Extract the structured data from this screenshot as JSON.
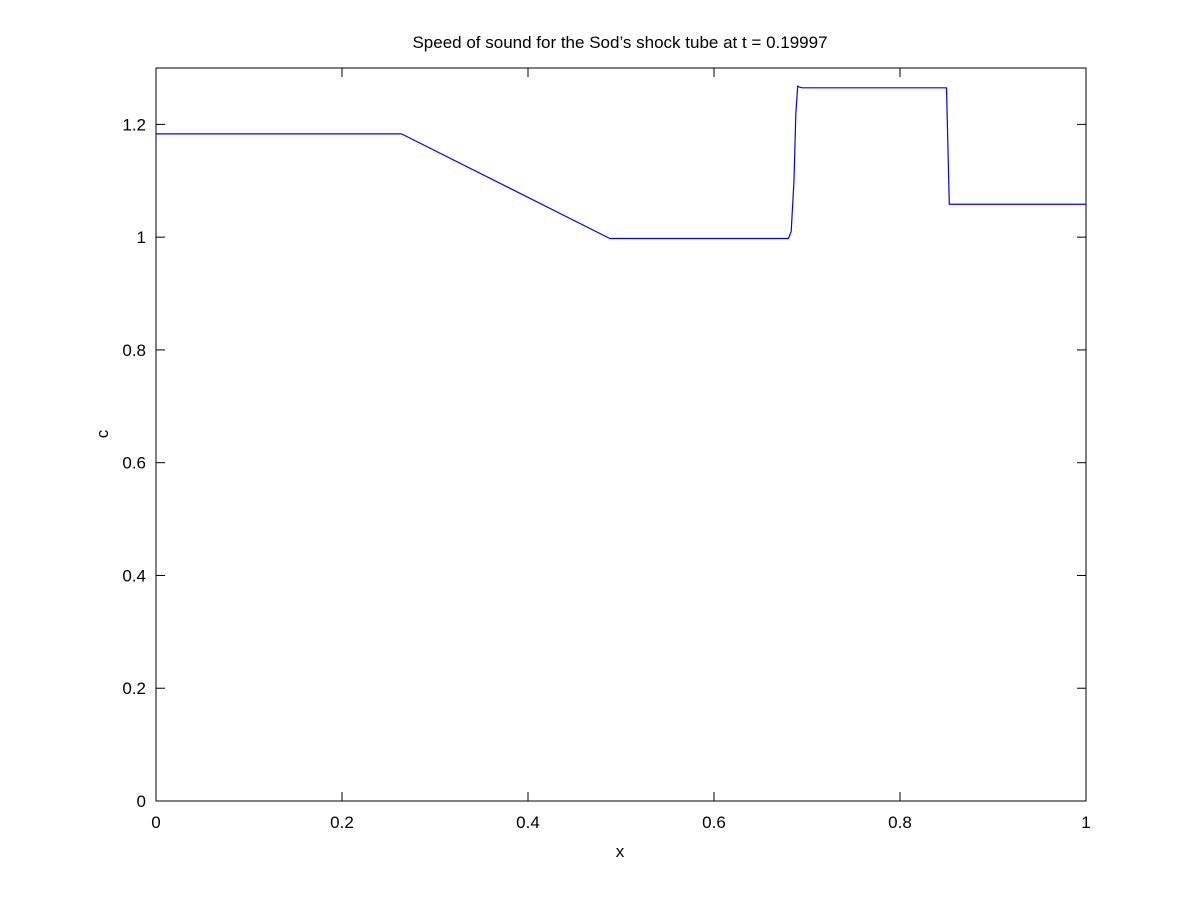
{
  "chart_data": {
    "type": "line",
    "title": "Speed of sound for the Sod’s shock tube at t = 0.19997",
    "xlabel": "x",
    "ylabel": "c",
    "xlim": [
      0,
      1
    ],
    "ylim": [
      0,
      1.3
    ],
    "x_ticks": [
      0,
      0.2,
      0.4,
      0.6,
      0.8,
      1
    ],
    "x_tick_labels": [
      "0",
      "0.2",
      "0.4",
      "0.6",
      "0.8",
      "1"
    ],
    "y_ticks": [
      0,
      0.2,
      0.4,
      0.6,
      0.8,
      1,
      1.2
    ],
    "y_tick_labels": [
      "0",
      "0.2",
      "0.4",
      "0.6",
      "0.8",
      "1",
      "1.2"
    ],
    "grid": false,
    "series": [
      {
        "color": "#0000ff",
        "x": [
          0,
          0.264,
          0.488,
          0.68,
          0.683,
          0.686,
          0.688,
          0.69,
          0.692,
          0.695,
          0.85,
          0.853,
          1
        ],
        "y": [
          1.1832,
          1.1832,
          0.9976,
          0.9976,
          1.01,
          1.1,
          1.22,
          1.268,
          1.266,
          1.2649,
          1.2649,
          1.0583,
          1.0583
        ]
      }
    ]
  }
}
